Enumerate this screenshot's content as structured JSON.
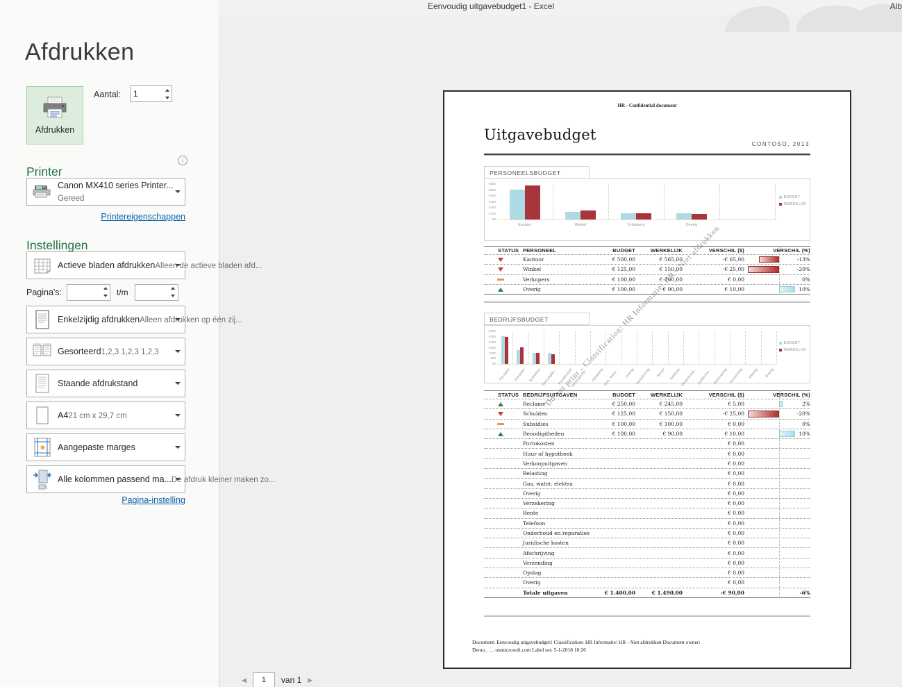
{
  "titlebar": {
    "title": "Eenvoudig uitgavebudget1  -  Excel",
    "user": "Alb"
  },
  "backstage": {
    "page_title": "Afdrukken",
    "print_button_label": "Afdrukken",
    "copies_label": "Aantal:",
    "copies_value": "1",
    "printer": {
      "heading": "Printer",
      "name": "Canon MX410 series Printer...",
      "status": "Gereed",
      "properties_link": "Printereigenschappen"
    },
    "settings": {
      "heading": "Instellingen",
      "pages_label": "Pagina's:",
      "pages_to_label": "t/m",
      "page_setup_link": "Pagina-instelling",
      "dropdowns": [
        {
          "id": "active-sheets",
          "icon": "sheet-grid-icon",
          "label": "Actieve bladen afdrukken",
          "sub": "Alleen de actieve bladen afd..."
        },
        {
          "id": "duplex",
          "icon": "one-sided-icon",
          "label": "Enkelzijdig afdrukken",
          "sub": "Alleen afdrukken op één zij..."
        },
        {
          "id": "collation",
          "icon": "collated-icon",
          "label": "Gesorteerd",
          "sub": "1,2,3    1,2,3    1,2,3"
        },
        {
          "id": "orientation",
          "icon": "portrait-icon",
          "label": "Staande afdrukstand",
          "sub": ""
        },
        {
          "id": "paper-size",
          "icon": "paper-icon",
          "label": "A4",
          "sub": "21 cm x 29,7 cm"
        },
        {
          "id": "margins",
          "icon": "margins-icon",
          "label": "Aangepaste marges",
          "sub": ""
        },
        {
          "id": "scaling",
          "icon": "fit-columns-icon",
          "label": "Alle kolommen passend ma...",
          "sub": "De afdruk kleiner maken zo..."
        }
      ]
    },
    "nav": {
      "page_value": "1",
      "of_label": "van 1"
    }
  },
  "preview": {
    "header_note": "HR - Confidential document",
    "doc_title": "Uitgavebudget",
    "company": "CONTOSO, 2013",
    "watermark": "Do not print - Classification: HR Informatie\\ HR - Niet afdrukken",
    "footer_line1": "Document: Eenvoudig uitgavebudget1  Classification: HR Informatie\\ HR - Niet afdrukken  Document owner:",
    "footer_line2": "Demo_ … onmicrosoft.com Label set: 5-1-2018 10:26"
  },
  "colors": {
    "accent_green": "#217346",
    "link_blue": "#0e63ad",
    "budget_bar": "#aedae6",
    "actual_bar": "#a8353b",
    "status_down": "#bf3f30",
    "status_up": "#35785a",
    "status_flat": "#cfa04a"
  },
  "chart_data": [
    {
      "type": "bar",
      "title": "PERSONEELSBUDGET",
      "categories": [
        "Kantoor",
        "Winkel",
        "Verkopers",
        "Overig"
      ],
      "series": [
        {
          "name": "BUDGET",
          "color": "#aedae6",
          "values": [
            500,
            125,
            100,
            100
          ]
        },
        {
          "name": "WERKELIJK",
          "color": "#a8353b",
          "values": [
            565,
            150,
            100,
            90
          ]
        }
      ],
      "ylim": [
        0,
        600
      ],
      "yticks": [
        "€600",
        "€500",
        "€400",
        "€300",
        "€200",
        "€100",
        "€0"
      ],
      "legend_position": "right",
      "grid": "dashed-vertical"
    },
    {
      "type": "bar",
      "title": "BEDRIJFSBUDGET",
      "categories": [
        "Reclame",
        "Schulden",
        "Subsidies",
        "Benodigdh...",
        "Portokosten",
        "Verkoopuitg...",
        "Belasting",
        "Gas, water...",
        "Overig",
        "Verzekering",
        "Rente",
        "Telefoon",
        "Onderhoud...",
        "Juridische...",
        "Afschrijving",
        "Verzending",
        "Opslag",
        "Overig"
      ],
      "series": [
        {
          "name": "BUDGET",
          "color": "#aedae6",
          "values": [
            250,
            125,
            100,
            100,
            0,
            0,
            0,
            0,
            0,
            0,
            0,
            0,
            0,
            0,
            0,
            0,
            0,
            0
          ]
        },
        {
          "name": "WERKELIJK",
          "color": "#a8353b",
          "values": [
            245,
            150,
            100,
            90,
            0,
            0,
            0,
            0,
            0,
            0,
            0,
            0,
            0,
            0,
            0,
            0,
            0,
            0
          ]
        }
      ],
      "ylim": [
        0,
        300
      ],
      "yticks": [
        "€300",
        "€250",
        "€200",
        "€150",
        "€100",
        "€50",
        "€0"
      ],
      "legend_position": "right",
      "grid": "dashed-vertical"
    }
  ],
  "tables": [
    {
      "headers": [
        "STATUS",
        "PERSONEEL",
        "BUDGET",
        "WERKELIJK",
        "VERSCHIL ($)",
        "VERSCHIL (%)"
      ],
      "rows": [
        {
          "status": "down",
          "name": "Kantoor",
          "budget": "€ 500,00",
          "actual": "€ 565,00",
          "diff": "-€ 65,00",
          "pct": "-13%",
          "pct_value": -13
        },
        {
          "status": "down",
          "name": "Winkel",
          "budget": "€ 125,00",
          "actual": "€ 150,00",
          "diff": "-€ 25,00",
          "pct": "-20%",
          "pct_value": -20
        },
        {
          "status": "flat",
          "name": "Verkopers",
          "budget": "€ 100,00",
          "actual": "€ 100,00",
          "diff": "€ 0,00",
          "pct": "0%",
          "pct_value": 0
        },
        {
          "status": "up",
          "name": "Overig",
          "budget": "€ 100,00",
          "actual": "€ 90,00",
          "diff": "€ 10,00",
          "pct": "10%",
          "pct_value": 10
        }
      ]
    },
    {
      "headers": [
        "STATUS",
        "BEDRIJFSUITGAVEN",
        "BUDGET",
        "WERKELIJK",
        "VERSCHIL ($)",
        "VERSCHIL (%)"
      ],
      "rows": [
        {
          "status": "up",
          "name": "Reclame",
          "budget": "€ 250,00",
          "actual": "€ 245,00",
          "diff": "€ 5,00",
          "pct": "2%",
          "pct_value": 2
        },
        {
          "status": "down",
          "name": "Schulden",
          "budget": "€ 125,00",
          "actual": "€ 150,00",
          "diff": "-€ 25,00",
          "pct": "-20%",
          "pct_value": -20
        },
        {
          "status": "flat",
          "name": "Subsidies",
          "budget": "€ 100,00",
          "actual": "€ 100,00",
          "diff": "€ 0,00",
          "pct": "0%",
          "pct_value": 0
        },
        {
          "status": "up",
          "name": "Benodigdheden",
          "budget": "€ 100,00",
          "actual": "€ 90,00",
          "diff": "€ 10,00",
          "pct": "10%",
          "pct_value": 10
        },
        {
          "status": "",
          "name": "Portokosten",
          "budget": "",
          "actual": "",
          "diff": "€ 0,00",
          "pct": "",
          "pct_value": 0
        },
        {
          "status": "",
          "name": "Huur of hypotheek",
          "budget": "",
          "actual": "",
          "diff": "€ 0,00",
          "pct": "",
          "pct_value": 0
        },
        {
          "status": "",
          "name": "Verkoopuitgaven",
          "budget": "",
          "actual": "",
          "diff": "€ 0,00",
          "pct": "",
          "pct_value": 0
        },
        {
          "status": "",
          "name": "Belasting",
          "budget": "",
          "actual": "",
          "diff": "€ 0,00",
          "pct": "",
          "pct_value": 0
        },
        {
          "status": "",
          "name": "Gas, water, elektra",
          "budget": "",
          "actual": "",
          "diff": "€ 0,00",
          "pct": "",
          "pct_value": 0
        },
        {
          "status": "",
          "name": "Overig",
          "budget": "",
          "actual": "",
          "diff": "€ 0,00",
          "pct": "",
          "pct_value": 0
        },
        {
          "status": "",
          "name": "Verzekering",
          "budget": "",
          "actual": "",
          "diff": "€ 0,00",
          "pct": "",
          "pct_value": 0
        },
        {
          "status": "",
          "name": "Rente",
          "budget": "",
          "actual": "",
          "diff": "€ 0,00",
          "pct": "",
          "pct_value": 0
        },
        {
          "status": "",
          "name": "Telefoon",
          "budget": "",
          "actual": "",
          "diff": "€ 0,00",
          "pct": "",
          "pct_value": 0
        },
        {
          "status": "",
          "name": "Onderhoud en reparaties",
          "budget": "",
          "actual": "",
          "diff": "€ 0,00",
          "pct": "",
          "pct_value": 0
        },
        {
          "status": "",
          "name": "Juridische kosten",
          "budget": "",
          "actual": "",
          "diff": "€ 0,00",
          "pct": "",
          "pct_value": 0
        },
        {
          "status": "",
          "name": "Afschrijving",
          "budget": "",
          "actual": "",
          "diff": "€ 0,00",
          "pct": "",
          "pct_value": 0
        },
        {
          "status": "",
          "name": "Verzending",
          "budget": "",
          "actual": "",
          "diff": "€ 0,00",
          "pct": "",
          "pct_value": 0
        },
        {
          "status": "",
          "name": "Opslag",
          "budget": "",
          "actual": "",
          "diff": "€ 0,00",
          "pct": "",
          "pct_value": 0
        },
        {
          "status": "",
          "name": "Overig",
          "budget": "",
          "actual": "",
          "diff": "€ 0,00",
          "pct": "",
          "pct_value": 0
        }
      ],
      "total": {
        "name": "Totale uitgaven",
        "budget": "€ 1.400,00",
        "actual": "€ 1.490,00",
        "diff": "-€ 90,00",
        "pct": "-6%"
      }
    }
  ]
}
